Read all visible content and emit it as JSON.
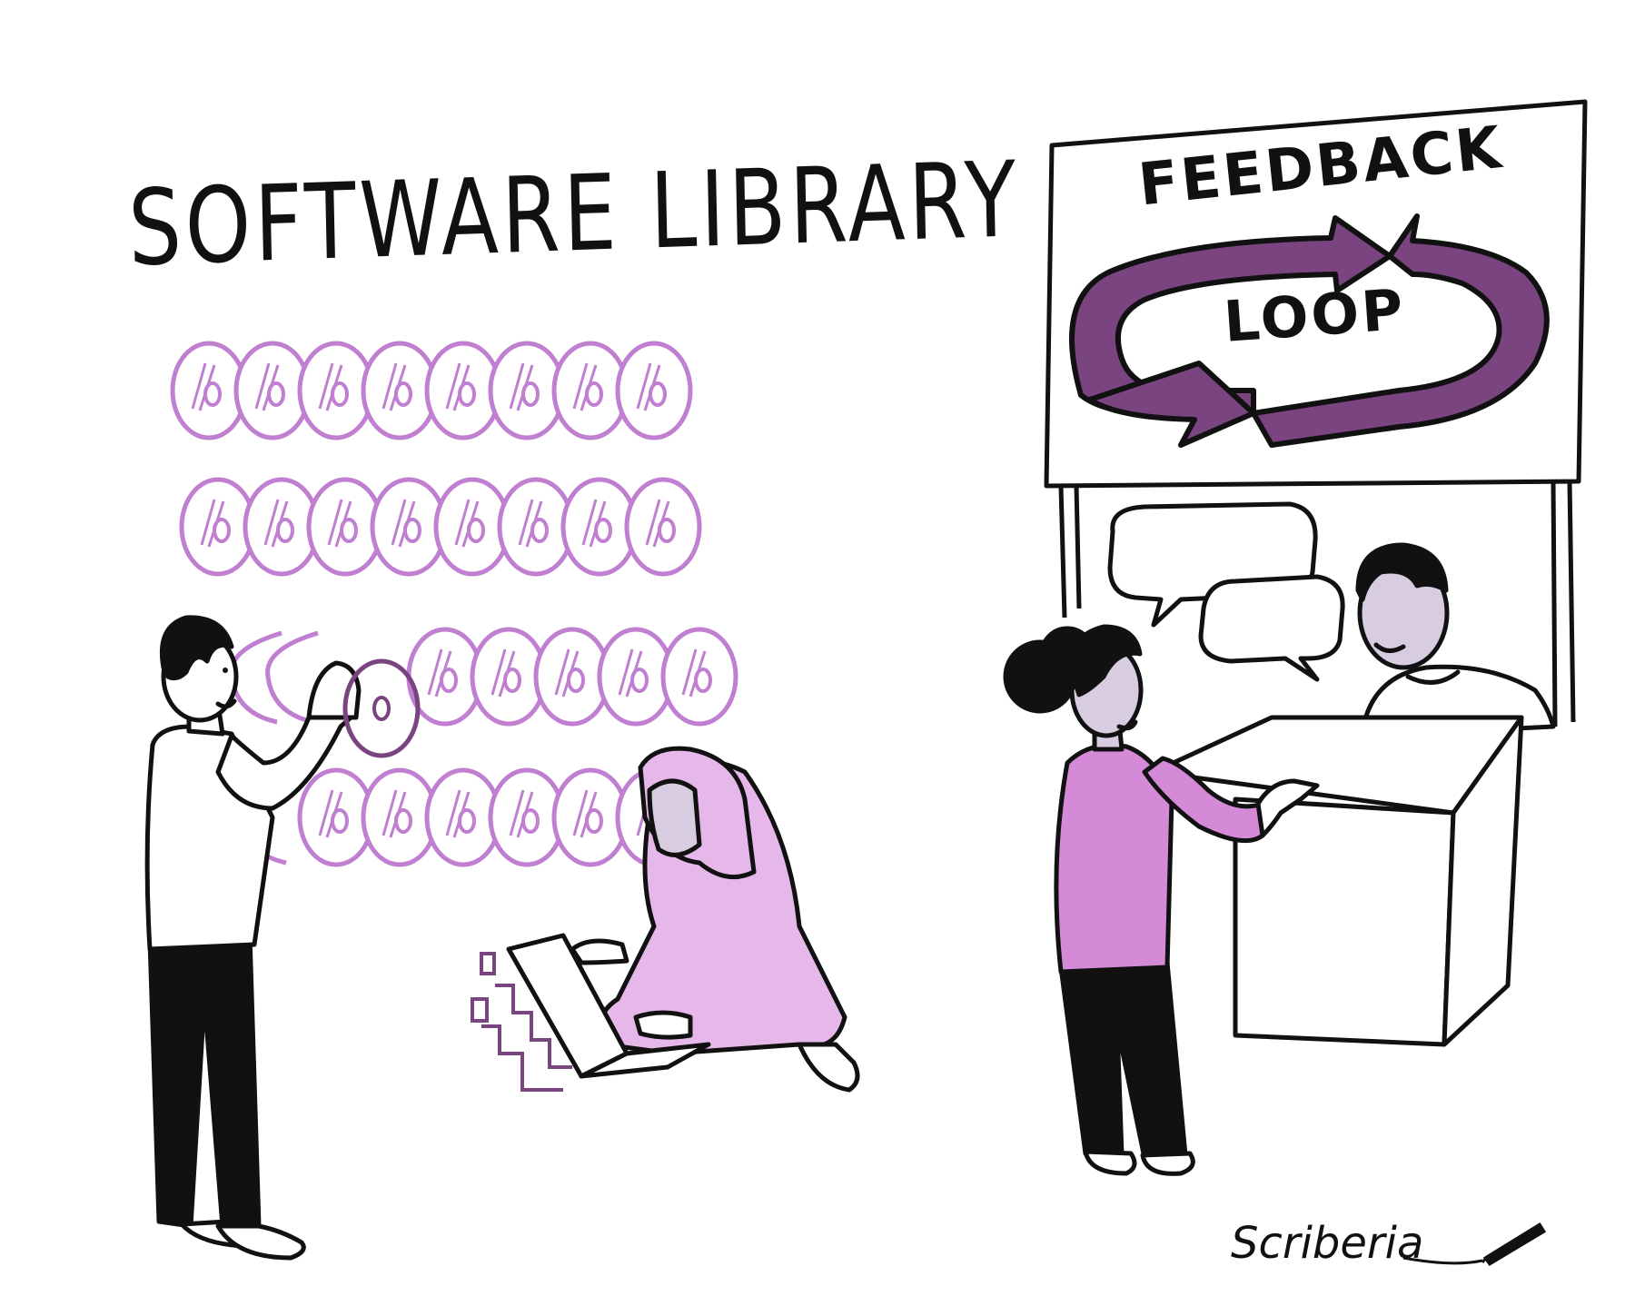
{
  "scene": {
    "left_panel": {
      "title": "SOFTWARE LIBRARY"
    },
    "right_panel": {
      "sign_top": "FEEDBACK",
      "sign_bottom": "LOOP"
    },
    "signature": "Scriberia"
  },
  "colors": {
    "ink": "#111111",
    "lilac": "#c07fd0",
    "purple_dark": "#7a4480",
    "pink_top": "#d58ad8",
    "skin": "#d7cce0",
    "white": "#ffffff"
  },
  "icons": {
    "disc": "percent-disc-icon",
    "speech": "speech-bubble-icon",
    "loop": "loop-arrows-icon",
    "pen": "pen-icon"
  }
}
